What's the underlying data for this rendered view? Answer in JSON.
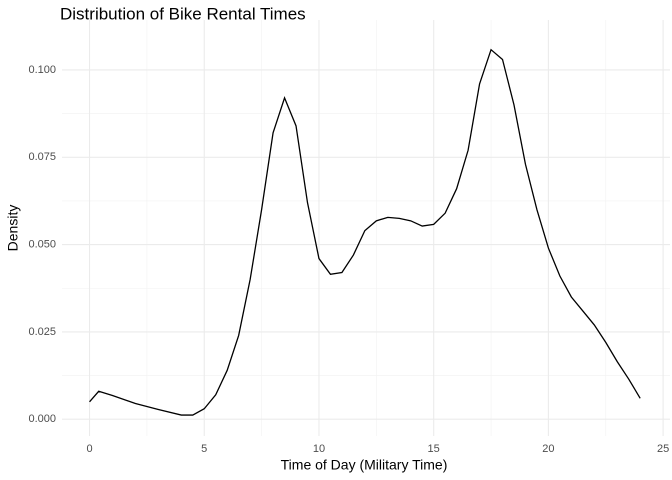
{
  "chart_data": {
    "type": "line",
    "title": "Distribution of Bike Rental Times",
    "x_label": "Time of Day (Military Time)",
    "y_label": "Density",
    "x": [
      0,
      0.4,
      1,
      2,
      3,
      4,
      4.5,
      5,
      5.5,
      6,
      6.5,
      7,
      7.5,
      8,
      8.5,
      9,
      9.5,
      10,
      10.5,
      11,
      11.5,
      12,
      12.5,
      13,
      13.5,
      14,
      14.5,
      15,
      15.5,
      16,
      16.5,
      17,
      17.5,
      18,
      18.5,
      19,
      19.5,
      20,
      20.5,
      21,
      21.5,
      22,
      22.5,
      23,
      23.5,
      24
    ],
    "series": [
      {
        "name": "Density",
        "color": "#000000",
        "values": [
          0.005,
          0.008,
          0.0068,
          0.0045,
          0.0028,
          0.0012,
          0.0012,
          0.003,
          0.007,
          0.014,
          0.024,
          0.04,
          0.06,
          0.082,
          0.092,
          0.084,
          0.062,
          0.046,
          0.0415,
          0.042,
          0.047,
          0.054,
          0.0568,
          0.0578,
          0.0575,
          0.0568,
          0.0553,
          0.0558,
          0.059,
          0.066,
          0.077,
          0.096,
          0.1058,
          0.103,
          0.09,
          0.073,
          0.06,
          0.049,
          0.041,
          0.035,
          0.031,
          0.027,
          0.022,
          0.0165,
          0.0115,
          0.006
        ]
      }
    ],
    "xlim": [
      -1.2,
      25.3
    ],
    "ylim": [
      -0.0048,
      0.1143
    ],
    "xticks": [
      0,
      5,
      10,
      15,
      20,
      25
    ],
    "yticks": [
      {
        "value": 0,
        "label": "0.000"
      },
      {
        "value": 0.025,
        "label": "0.025"
      },
      {
        "value": 0.05,
        "label": "0.050"
      },
      {
        "value": 0.075,
        "label": "0.075"
      },
      {
        "value": 0.1,
        "label": "0.100"
      }
    ],
    "x_minor_grid": [
      2.5,
      7.5,
      12.5,
      17.5,
      22.5
    ],
    "y_minor_grid": [
      0.0125,
      0.0375,
      0.0625,
      0.0875
    ],
    "grid": true
  }
}
